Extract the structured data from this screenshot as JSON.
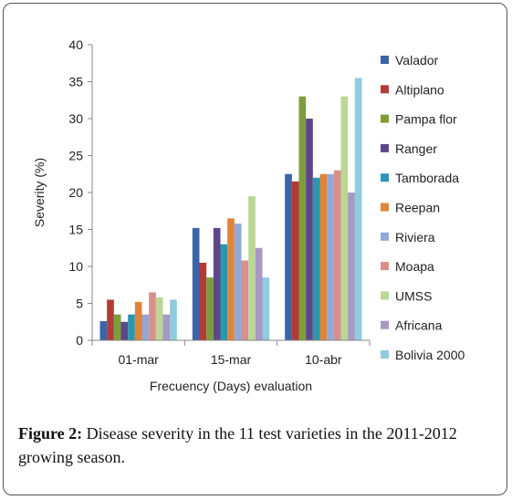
{
  "caption": {
    "label": "Figure 2:",
    "text": "Disease severity in the 11 test varieties in the 2011-2012 growing season."
  },
  "chart_data": {
    "type": "bar",
    "title": "",
    "xlabel": "Frecuency (Days) evaluation",
    "ylabel": "Severity (%)",
    "ylim": [
      0,
      40
    ],
    "yticks": [
      "0",
      "5",
      "10",
      "15",
      "20",
      "25",
      "30",
      "35",
      "40"
    ],
    "categories": [
      "01-mar",
      "15-mar",
      "10-abr"
    ],
    "grid": false,
    "legend_position": "right",
    "series": [
      {
        "name": "Valador",
        "color": "#3C64A8",
        "values": [
          2.6,
          15.2,
          22.5
        ]
      },
      {
        "name": "Altiplano",
        "color": "#B23B38",
        "values": [
          5.5,
          10.5,
          21.5
        ]
      },
      {
        "name": "Pampa flor",
        "color": "#7E9E3A",
        "values": [
          3.5,
          8.5,
          33.0
        ]
      },
      {
        "name": "Ranger",
        "color": "#5E4789",
        "values": [
          2.5,
          15.2,
          30.0
        ]
      },
      {
        "name": "Tamborada",
        "color": "#2A97B0",
        "values": [
          3.5,
          13.0,
          22.0
        ]
      },
      {
        "name": "Reepan",
        "color": "#E0843A",
        "values": [
          5.2,
          16.5,
          22.5
        ]
      },
      {
        "name": "Riviera",
        "color": "#92A9D6",
        "values": [
          3.5,
          15.8,
          22.5
        ]
      },
      {
        "name": "Moapa",
        "color": "#D88F8C",
        "values": [
          6.5,
          10.8,
          23.0
        ]
      },
      {
        "name": "UMSS",
        "color": "#BBD695",
        "values": [
          5.8,
          19.5,
          33.0
        ]
      },
      {
        "name": "Africana",
        "color": "#A798C4",
        "values": [
          3.5,
          12.5,
          20.0
        ]
      },
      {
        "name": "Bolivia 2000",
        "color": "#90CBDE",
        "values": [
          5.5,
          8.5,
          35.5
        ]
      }
    ]
  }
}
